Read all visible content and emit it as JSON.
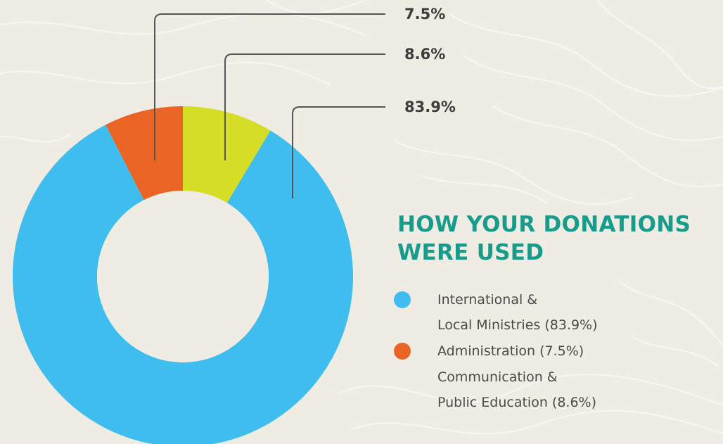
{
  "title": {
    "line1": "HOW YOUR DONATIONS",
    "line2": "WERE USED"
  },
  "colors": {
    "background": "#efece4",
    "title": "#179c8c",
    "text": "#4a4a4a",
    "callout_text": "#3d3d3d",
    "leader_line": "#555555"
  },
  "legend": [
    {
      "lines": [
        "International &",
        "Local Ministries (83.9%)"
      ],
      "color": "#3ebdee"
    },
    {
      "lines": [
        "Administration (7.5%)"
      ],
      "color": "#ea6425"
    },
    {
      "lines": [
        "Communication &",
        "Public Education (8.6%)"
      ],
      "color": null
    }
  ],
  "chart_data": {
    "type": "pie",
    "style": "donut",
    "title": "HOW YOUR DONATIONS WERE USED",
    "start_angle_deg": 0,
    "direction": "clockwise",
    "slices": [
      {
        "label": "Communication & Public Education",
        "value": 8.6,
        "display": "8.6%",
        "color": "#d6dd26"
      },
      {
        "label": "International & Local Ministries",
        "value": 83.9,
        "display": "83.9%",
        "color": "#3ebdee"
      },
      {
        "label": "Administration",
        "value": 7.5,
        "display": "7.5%",
        "color": "#ea6425"
      }
    ],
    "callout_order": [
      "Administration",
      "Communication & Public Education",
      "International & Local Ministries"
    ]
  }
}
